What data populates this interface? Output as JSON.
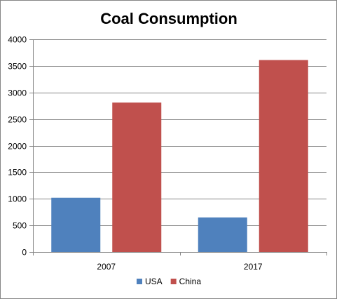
{
  "chart_data": {
    "type": "bar",
    "title": "Coal Consumption",
    "xlabel": "",
    "ylabel": "",
    "categories": [
      "2007",
      "2017"
    ],
    "series": [
      {
        "name": "USA",
        "values": [
          1020,
          650
        ],
        "color": "#4F81BD"
      },
      {
        "name": "China",
        "values": [
          2810,
          3610
        ],
        "color": "#C0504D"
      }
    ],
    "ylim": [
      0,
      4000
    ],
    "yticks": [
      "0",
      "500",
      "1000",
      "1500",
      "2000",
      "2500",
      "3000",
      "3500",
      "4000"
    ],
    "grid": true,
    "gridline_color": "#868686",
    "legend_position": "bottom"
  }
}
